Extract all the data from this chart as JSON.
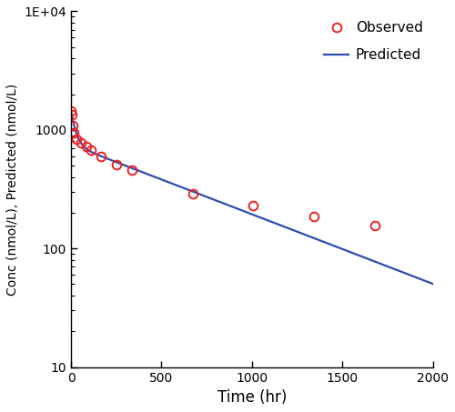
{
  "observed_time": [
    1,
    2,
    7,
    14,
    28,
    56,
    84,
    112,
    168,
    252,
    336,
    672,
    1008,
    1344,
    1680
  ],
  "observed_conc": [
    1450,
    1350,
    1080,
    950,
    830,
    780,
    730,
    680,
    600,
    510,
    460,
    290,
    230,
    185,
    155
  ],
  "predicted_time_start": 0,
  "predicted_time_end": 2000,
  "line_color": "#2B4EAF",
  "marker_color": "#EE2222",
  "marker_facecolor": "none",
  "xlabel": "Time (hr)",
  "ylabel": "Conc (nmol/L), Predicted (nmol/L)",
  "xlim": [
    0,
    2000
  ],
  "ylim_log": [
    10,
    10000
  ],
  "xticks": [
    0,
    500,
    1000,
    1500,
    2000
  ],
  "yticks_log": [
    10,
    100,
    1000,
    10000
  ],
  "legend_observed": "Observed",
  "legend_predicted": "Predicted",
  "background_color": "#FFFFFF",
  "A1": 700,
  "lambda1": 0.04,
  "A2": 750,
  "lambda2": 0.00135
}
